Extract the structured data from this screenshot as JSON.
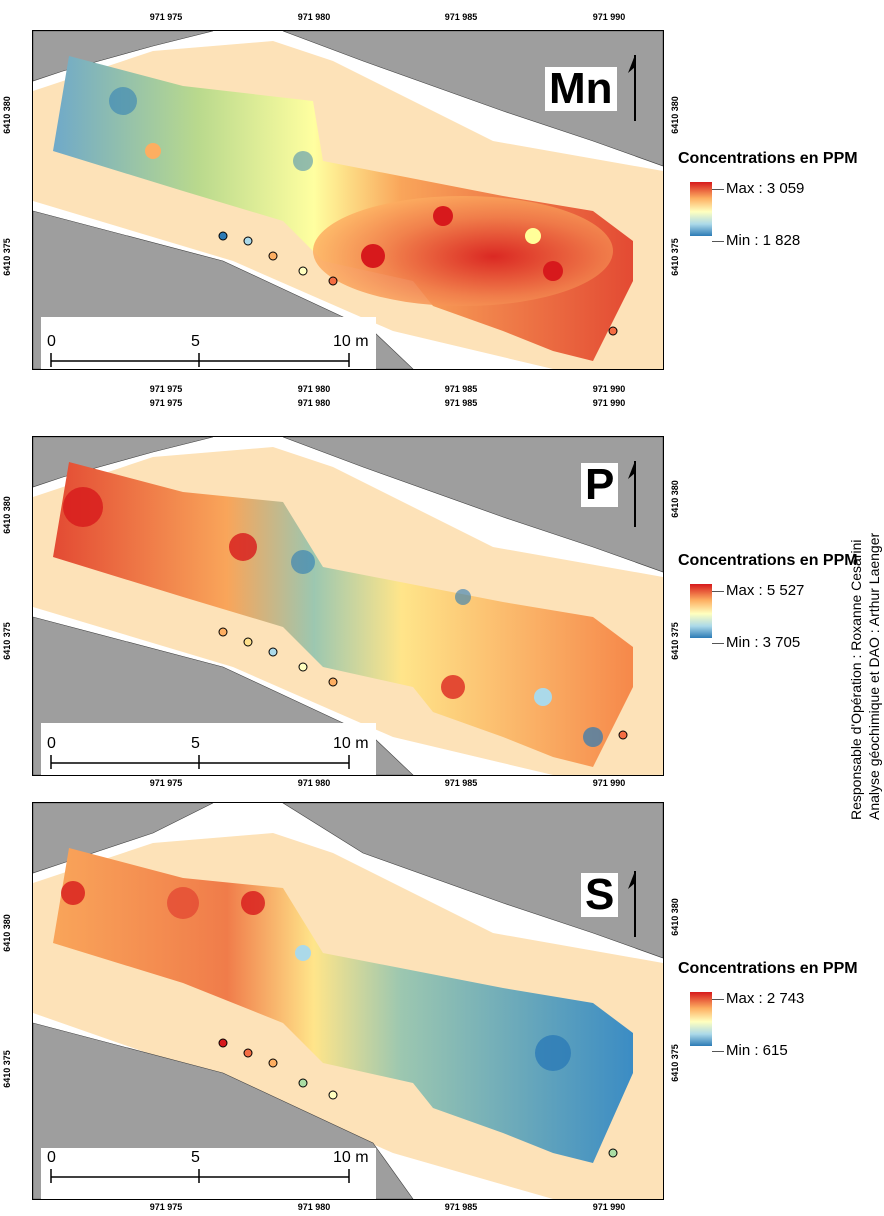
{
  "maps": [
    {
      "element": "Mn",
      "legend_title": "Concentrations en PPM",
      "max_label": "Max : 3 059",
      "min_label": "Min : 1 828",
      "x_ticks_top": [
        "971 975",
        "971 980",
        "971 985",
        "971 990"
      ],
      "x_ticks_bottom": [
        "971 975",
        "971 980",
        "971 985",
        "971 990"
      ],
      "y_ticks": [
        "6410 380",
        "6410 375"
      ],
      "dominant_color": "#e8632f"
    },
    {
      "element": "P",
      "legend_title": "Concentrations en PPM",
      "max_label": "Max : 5 527",
      "min_label": "Min : 3 705",
      "x_ticks_top": [
        "971 975",
        "971 980",
        "971 985",
        "971 990"
      ],
      "x_ticks_bottom": [
        "971 975",
        "971 980",
        "971 985",
        "971 990"
      ],
      "y_ticks": [
        "6410 380",
        "6410 375"
      ],
      "dominant_color": "#f6b45a"
    },
    {
      "element": "S",
      "legend_title": "Concentrations en PPM",
      "max_label": "Max : 2 743",
      "min_label": "Min : 615",
      "x_ticks_top": [
        "971 975",
        "971 980",
        "971 985",
        "971 990"
      ],
      "x_ticks_bottom": [
        "971 975",
        "971 980",
        "971 985",
        "971 990"
      ],
      "y_ticks": [
        "6410 380",
        "6410 375"
      ],
      "dominant_color": "#6fa9c9"
    }
  ],
  "scale_bar": {
    "labels": [
      "0",
      "5",
      "10 m"
    ]
  },
  "north_label": "N",
  "credits": {
    "line1": "Responsable d'Opération : Roxanne Cesarini",
    "line2": "Analyse géochimique et DAO : Arthur Laenger"
  },
  "colors": {
    "max": "#d7191c",
    "min": "#2c7bb6",
    "sand": "#fde2b8",
    "stone": "#a6a6a6"
  }
}
